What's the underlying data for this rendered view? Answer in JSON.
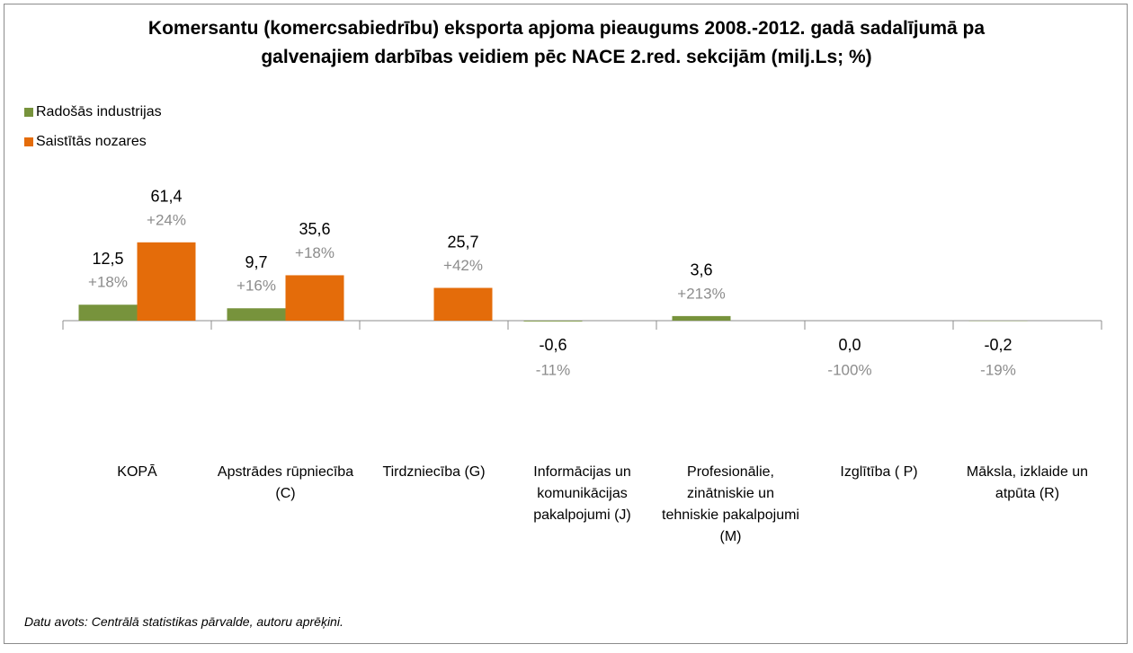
{
  "chart_data": {
    "type": "bar",
    "title": "Komersantu (komercsabiedrību) eksporta apjoma pieaugums 2008.-2012. gadā sadalījumā pa galvenajiem darbības veidiem pēc NACE 2.red. sekcijām (milj.Ls; %)",
    "categories": [
      "KOPĀ",
      "Apstrādes rūpniecība (C)",
      "Tirdzniecība (G)",
      "Informācijas un komunikācijas pakalpojumi (J)",
      "Profesionālie, zinātniskie un tehniskie pakalpojumi (M)",
      "Izglītība ( P)",
      "Māksla, izklaide un atpūta (R)"
    ],
    "series": [
      {
        "name": "Radošās industrijas",
        "color": "#77933c",
        "values": [
          12.5,
          9.7,
          null,
          -0.6,
          3.6,
          0.0,
          -0.2
        ],
        "value_labels": [
          "12,5",
          "9,7",
          null,
          "-0,6",
          "3,6",
          "0,0",
          "-0,2"
        ],
        "annotations": [
          "+18%",
          "+16%",
          null,
          "-11%",
          "+213%",
          "-100%",
          "-19%"
        ]
      },
      {
        "name": "Saistītās nozares",
        "color": "#e46c0a",
        "values": [
          61.4,
          35.6,
          25.7,
          null,
          null,
          null,
          null
        ],
        "value_labels": [
          "61,4",
          "35,6",
          "25,7",
          null,
          null,
          null,
          null
        ],
        "annotations": [
          "+24%",
          "+18%",
          "+42%",
          null,
          null,
          null,
          null
        ]
      }
    ],
    "ylim": [
      -100,
      100
    ],
    "legend": "top-left",
    "source": "Datu avots: Centrālā statistikas pārvalde, autoru aprēķini."
  }
}
